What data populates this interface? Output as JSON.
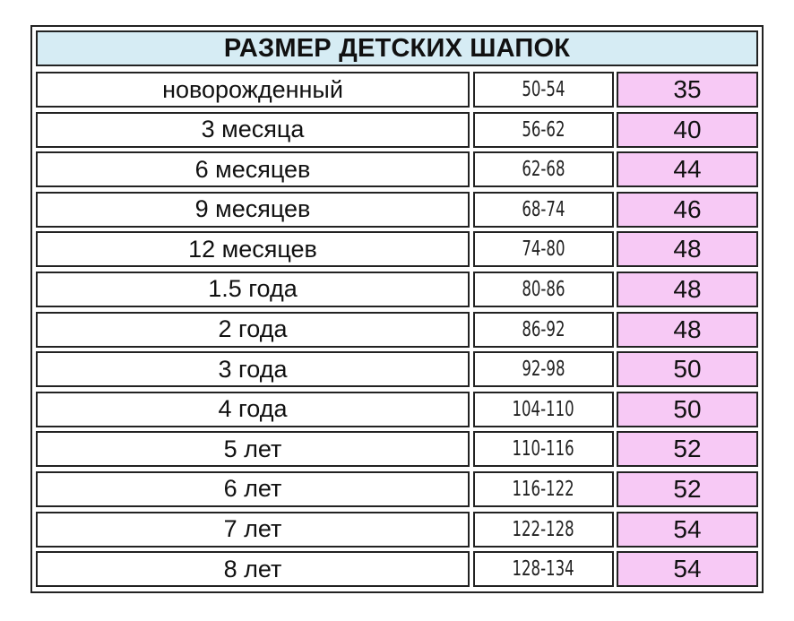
{
  "table": {
    "title": "РАЗМЕР ДЕТСКИХ ШАПОК",
    "header_color": "#d6ecf4",
    "size_column_color": "#f7c9f5",
    "rows": [
      {
        "age": "новорожденный",
        "circumference": "50-54",
        "size": "35"
      },
      {
        "age": "3 месяца",
        "circumference": "56-62",
        "size": "40"
      },
      {
        "age": "6 месяцев",
        "circumference": "62-68",
        "size": "44"
      },
      {
        "age": "9 месяцев",
        "circumference": "68-74",
        "size": "46"
      },
      {
        "age": "12 месяцев",
        "circumference": "74-80",
        "size": "48"
      },
      {
        "age": "1.5 года",
        "circumference": "80-86",
        "size": "48"
      },
      {
        "age": "2 года",
        "circumference": "86-92",
        "size": "48"
      },
      {
        "age": "3 года",
        "circumference": "92-98",
        "size": "50"
      },
      {
        "age": "4 года",
        "circumference": "104-110",
        "size": "50"
      },
      {
        "age": "5 лет",
        "circumference": "110-116",
        "size": "52"
      },
      {
        "age": "6 лет",
        "circumference": "116-122",
        "size": "52"
      },
      {
        "age": "7 лет",
        "circumference": "122-128",
        "size": "54"
      },
      {
        "age": "8 лет",
        "circumference": "128-134",
        "size": "54"
      }
    ]
  }
}
